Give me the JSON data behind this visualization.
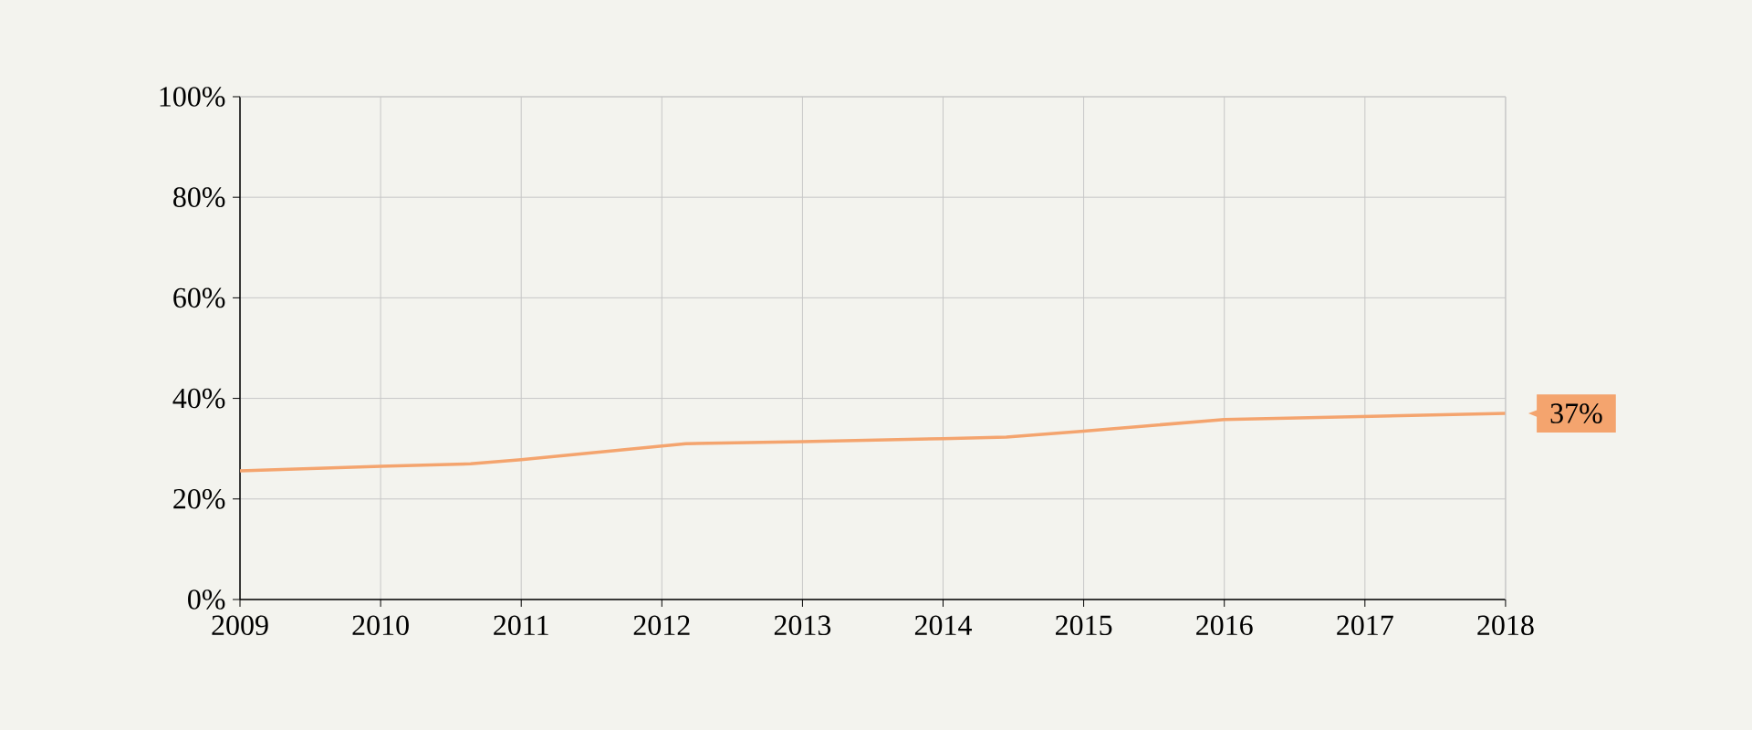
{
  "chart_data": {
    "type": "line",
    "x": [
      2009,
      2010,
      2010.64,
      2011,
      2012.17,
      2013,
      2014,
      2014.45,
      2015,
      2016,
      2017,
      2018
    ],
    "values": [
      25.6,
      26.5,
      27.0,
      27.8,
      31.0,
      31.4,
      32.0,
      32.3,
      33.5,
      35.8,
      36.4,
      37
    ],
    "value_labels": [
      null,
      null,
      null,
      null,
      null,
      null,
      null,
      null,
      null,
      null,
      null,
      "37%"
    ],
    "color": "#f4a46e",
    "xlim": [
      2009,
      2018
    ],
    "xticks": [
      2009,
      2010,
      2011,
      2012,
      2013,
      2014,
      2015,
      2016,
      2017,
      2018
    ],
    "ylim": [
      0,
      100
    ],
    "yticks": [
      {
        "value": 0,
        "label": "0%"
      },
      {
        "value": 20,
        "label": "20%"
      },
      {
        "value": 40,
        "label": "40%"
      },
      {
        "value": 60,
        "label": "60%"
      },
      {
        "value": 80,
        "label": "80%"
      },
      {
        "value": 100,
        "label": "100%"
      }
    ],
    "grid": true,
    "marker": "none",
    "line_style": "solid"
  }
}
